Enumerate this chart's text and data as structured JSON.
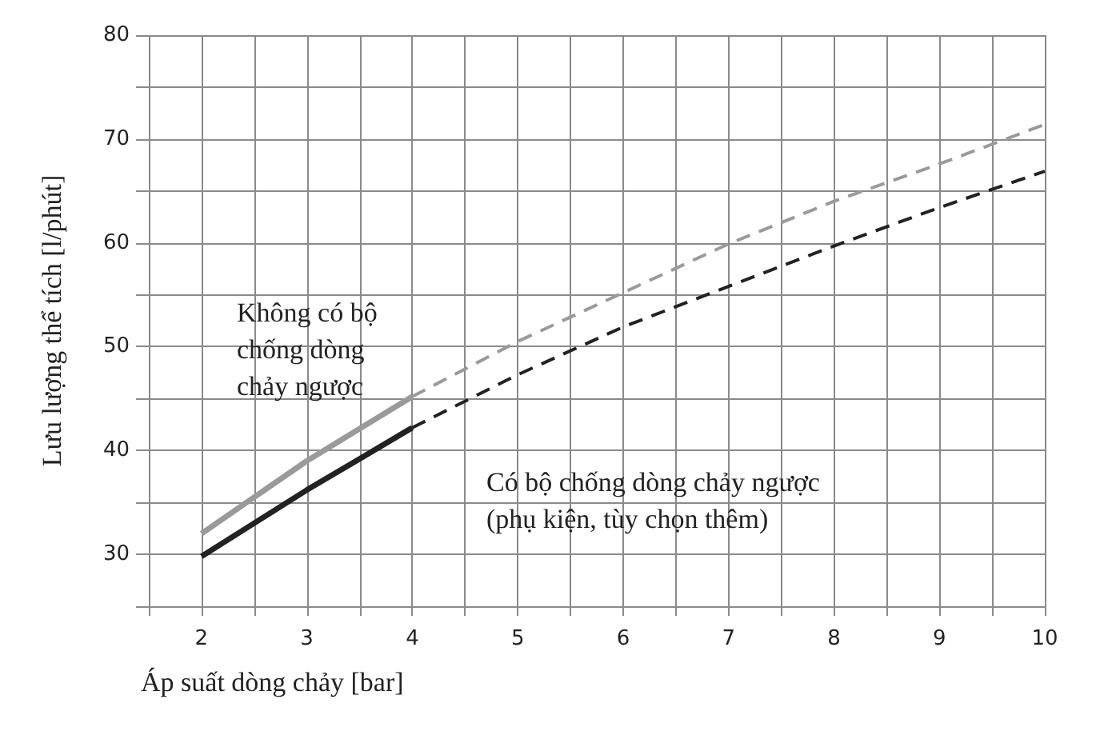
{
  "chart_data": {
    "type": "line",
    "xlabel": "Áp suất dòng chảy [bar]",
    "ylabel": "Lưu lượng thể tích [l/phút]",
    "xlim": [
      1.5,
      10
    ],
    "ylim": [
      25,
      80
    ],
    "xticks": [
      {
        "value": 1.5,
        "label": null
      },
      2,
      {
        "value": 2.5,
        "label": null
      },
      3,
      {
        "value": 3.5,
        "label": null
      },
      4,
      {
        "value": 4.5,
        "label": null
      },
      5,
      {
        "value": 5.5,
        "label": null
      },
      6,
      {
        "value": 6.5,
        "label": null
      },
      7,
      {
        "value": 7.5,
        "label": null
      },
      8,
      {
        "value": 8.5,
        "label": null
      },
      9,
      {
        "value": 9.5,
        "label": null
      },
      10
    ],
    "yticks": [
      {
        "value": 25,
        "label": null
      },
      30,
      {
        "value": 35,
        "label": null
      },
      40,
      {
        "value": 45,
        "label": null
      },
      50,
      {
        "value": 55,
        "label": null
      },
      60,
      {
        "value": 65,
        "label": null
      },
      70,
      {
        "value": 75,
        "label": null
      },
      80
    ],
    "grid": true,
    "series": [
      {
        "color": "#9a9a9a",
        "line_style": "solid",
        "x": [
          2,
          2.5,
          3,
          3.5,
          4
        ],
        "values": [
          32,
          35.5,
          39,
          42.1,
          45.2
        ]
      },
      {
        "color": "#9a9a9a",
        "line_style": "dashed",
        "x": [
          4,
          5,
          6,
          7,
          8,
          9,
          10
        ],
        "values": [
          45.2,
          50.5,
          55.2,
          59.9,
          64,
          67.6,
          71.4
        ]
      },
      {
        "color": "#222222",
        "line_style": "solid",
        "x": [
          2,
          2.5,
          3,
          3.5,
          4
        ],
        "values": [
          29.8,
          33,
          36.2,
          39.2,
          42.2
        ]
      },
      {
        "color": "#222222",
        "line_style": "dashed",
        "x": [
          4,
          5,
          6,
          7,
          8,
          9,
          10
        ],
        "values": [
          42.2,
          47.3,
          51.9,
          55.8,
          59.7,
          63.4,
          66.9
        ]
      }
    ],
    "annotations": [
      "Không có bộ\nchống dòng\nchảy ngược",
      "Có bộ chống dòng chảy ngược\n(phụ kiện, tùy chọn thêm)"
    ]
  }
}
